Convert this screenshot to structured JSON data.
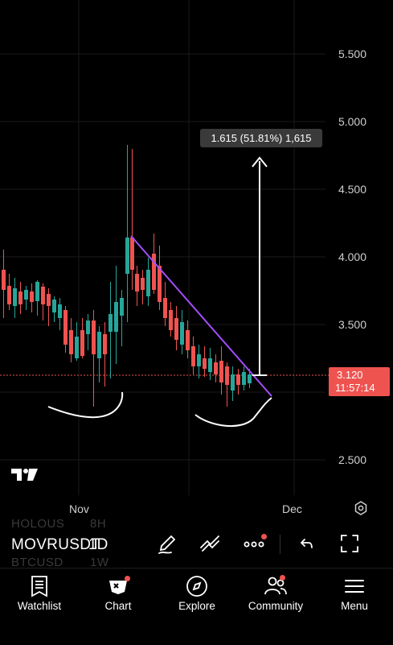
{
  "chart": {
    "price_ticks": [
      "5.500",
      "5.000",
      "4.500",
      "4.000",
      "3.500",
      "2.500"
    ],
    "date_ticks": [
      "Nov",
      "Dec"
    ],
    "measure_label": "1.615 (51.81%) 1,615",
    "current_price": "3.120",
    "countdown": "11:57:14",
    "colors": {
      "up": "#26a69a",
      "down": "#ef5350",
      "trendline": "#a64dff",
      "measure": "#ffffff"
    }
  },
  "toolbar": {
    "ghost_symbols": [
      "HOLOUS",
      "BTCUSD"
    ],
    "ghost_intervals": [
      "8H",
      "1W"
    ],
    "symbol": "MOVRUSDT",
    "interval": "1D",
    "icons": [
      "pen-icon",
      "draw-tools-icon",
      "more-icon",
      "undo-icon",
      "fullscreen-icon"
    ]
  },
  "tabs": [
    {
      "label": "Watchlist",
      "icon": "watchlist-icon"
    },
    {
      "label": "Chart",
      "icon": "chart-icon"
    },
    {
      "label": "Explore",
      "icon": "compass-icon"
    },
    {
      "label": "Community",
      "icon": "community-icon"
    },
    {
      "label": "Menu",
      "icon": "menu-icon"
    }
  ]
}
